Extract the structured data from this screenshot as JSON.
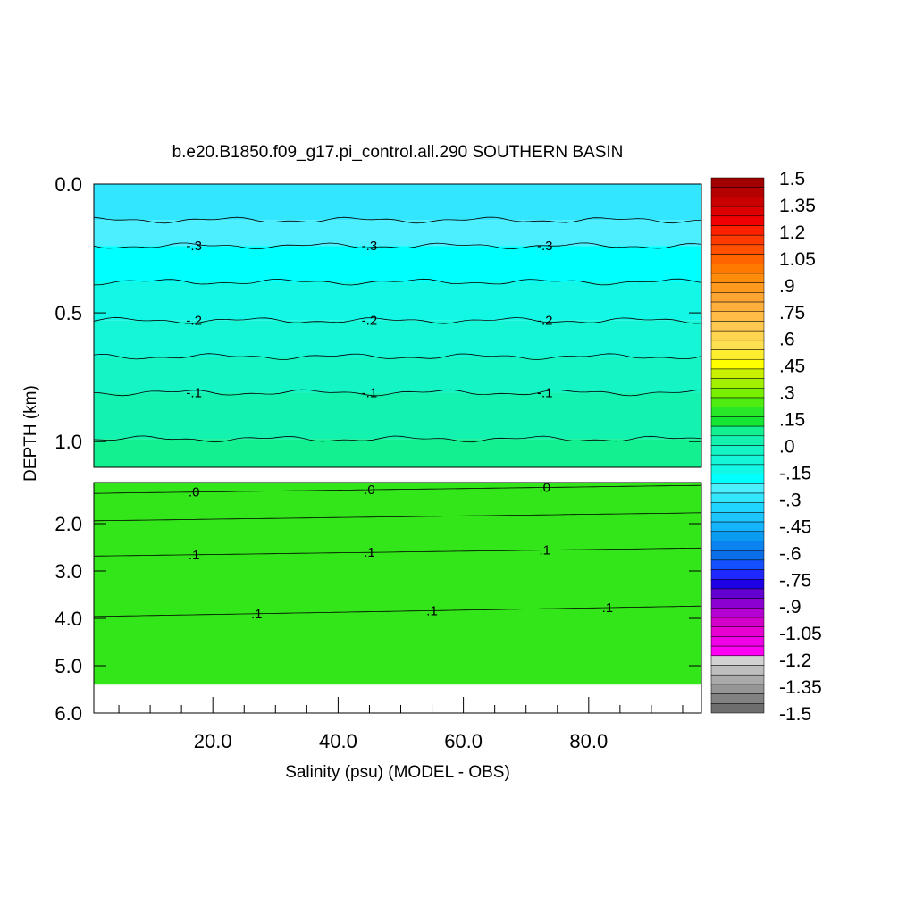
{
  "chart_data": {
    "type": "heatmap",
    "title": "b.e20.B1850.f09_g17.pi_control.all.290 SOUTHERN BASIN",
    "xlabel": "Salinity (psu) (MODEL - OBS)",
    "ylabel": "DEPTH (km)",
    "xlim": [
      1,
      98
    ],
    "x_ticks": [
      20.0,
      40.0,
      60.0,
      80.0
    ],
    "x_tick_labels": [
      "20.0",
      "40.0",
      "60.0",
      "80.0"
    ],
    "upper_panel": {
      "ylim": [
        0.0,
        1.1
      ],
      "y_ticks": [
        0.0,
        0.5,
        1.0
      ],
      "y_tick_labels": [
        "0.0",
        "0.5",
        "1.0"
      ]
    },
    "lower_panel": {
      "ylim": [
        1.1,
        6.0
      ],
      "y_ticks": [
        2.0,
        3.0,
        4.0,
        5.0,
        6.0
      ],
      "y_tick_labels": [
        "2.0",
        "3.0",
        "4.0",
        "5.0",
        "6.0"
      ],
      "data_bottom_depth": 5.4
    },
    "bands": [
      {
        "panel": "upper",
        "y_from": 0.0,
        "y_to": 0.14,
        "value": -0.375,
        "color": "#33e6ff"
      },
      {
        "panel": "upper",
        "y_from": 0.14,
        "y_to": 0.24,
        "value": -0.325,
        "color": "#4cefff"
      },
      {
        "panel": "upper",
        "y_from": 0.24,
        "y_to": 0.38,
        "value": -0.275,
        "color": "#00ffff"
      },
      {
        "panel": "upper",
        "y_from": 0.38,
        "y_to": 0.53,
        "value": -0.225,
        "color": "#13f8e6"
      },
      {
        "panel": "upper",
        "y_from": 0.53,
        "y_to": 0.67,
        "value": -0.175,
        "color": "#14f6d6"
      },
      {
        "panel": "upper",
        "y_from": 0.67,
        "y_to": 0.81,
        "value": -0.125,
        "color": "#14f4c4"
      },
      {
        "panel": "upper",
        "y_from": 0.81,
        "y_to": 0.99,
        "value": -0.075,
        "color": "#14f2b0"
      },
      {
        "panel": "upper",
        "y_from": 0.99,
        "y_to": 1.1,
        "value": -0.025,
        "color": "#12f090"
      },
      {
        "panel": "lower",
        "y_from": 1.1,
        "y_to": 5.4,
        "value": 0.05,
        "color": "#33e61a"
      }
    ],
    "contours": [
      {
        "panel": "upper",
        "level": -0.35,
        "y": 0.14
      },
      {
        "panel": "upper",
        "level": -0.3,
        "y": 0.24,
        "label": "-.3"
      },
      {
        "panel": "upper",
        "level": -0.25,
        "y": 0.38
      },
      {
        "panel": "upper",
        "level": -0.2,
        "y": 0.53,
        "label": "-.2"
      },
      {
        "panel": "upper",
        "level": -0.15,
        "y": 0.67
      },
      {
        "panel": "upper",
        "level": -0.1,
        "y": 0.81,
        "label": "-.1"
      },
      {
        "panel": "upper",
        "level": -0.05,
        "y": 0.99
      },
      {
        "panel": "lower",
        "level": 0.0,
        "y": 1.25,
        "label": ".0"
      },
      {
        "panel": "lower",
        "level": 0.05,
        "y": 1.85
      },
      {
        "panel": "lower",
        "level": 0.1,
        "y": 2.6,
        "label": ".1"
      },
      {
        "panel": "lower",
        "level": 0.1,
        "y": 3.85,
        "label": ".1"
      }
    ],
    "colorbar": {
      "tick_labels": [
        "1.5",
        "1.35",
        "1.2",
        "1.05",
        ".9",
        ".75",
        ".6",
        ".45",
        ".3",
        ".15",
        ".0",
        "-.15",
        "-.3",
        "-.45",
        "-.6",
        "-.75",
        "-.9",
        "-1.05",
        "-1.2",
        "-1.35",
        "-1.5"
      ],
      "colors": [
        "#a00000",
        "#b40000",
        "#c80000",
        "#dc0000",
        "#f00000",
        "#ff2000",
        "#ff3a00",
        "#ff5000",
        "#ff6400",
        "#ff7800",
        "#ff8c0a",
        "#ff9a1e",
        "#ffa532",
        "#ffb03c",
        "#ffbc46",
        "#ffc850",
        "#ffd450",
        "#ffe050",
        "#ffee30",
        "#ffff00",
        "#c8f000",
        "#a0f000",
        "#78f000",
        "#50ee10",
        "#28e628",
        "#14e632",
        "#12f090",
        "#14f2b0",
        "#14f4c4",
        "#14f6d6",
        "#13f8e6",
        "#00ffff",
        "#4cefff",
        "#33e6ff",
        "#1ed6ff",
        "#1ec6ff",
        "#14b4ff",
        "#0a9cf0",
        "#0a82f0",
        "#0a6ee6",
        "#1450ff",
        "#1e28ff",
        "#1e00e6",
        "#6400d2",
        "#8c00d2",
        "#b400d2",
        "#d200c8",
        "#e600d2",
        "#f000e6",
        "#ff00f5",
        "#d2d2d2",
        "#bebebe",
        "#aaaaaa",
        "#969696",
        "#828282",
        "#6e6e6e"
      ]
    },
    "grid": false
  }
}
